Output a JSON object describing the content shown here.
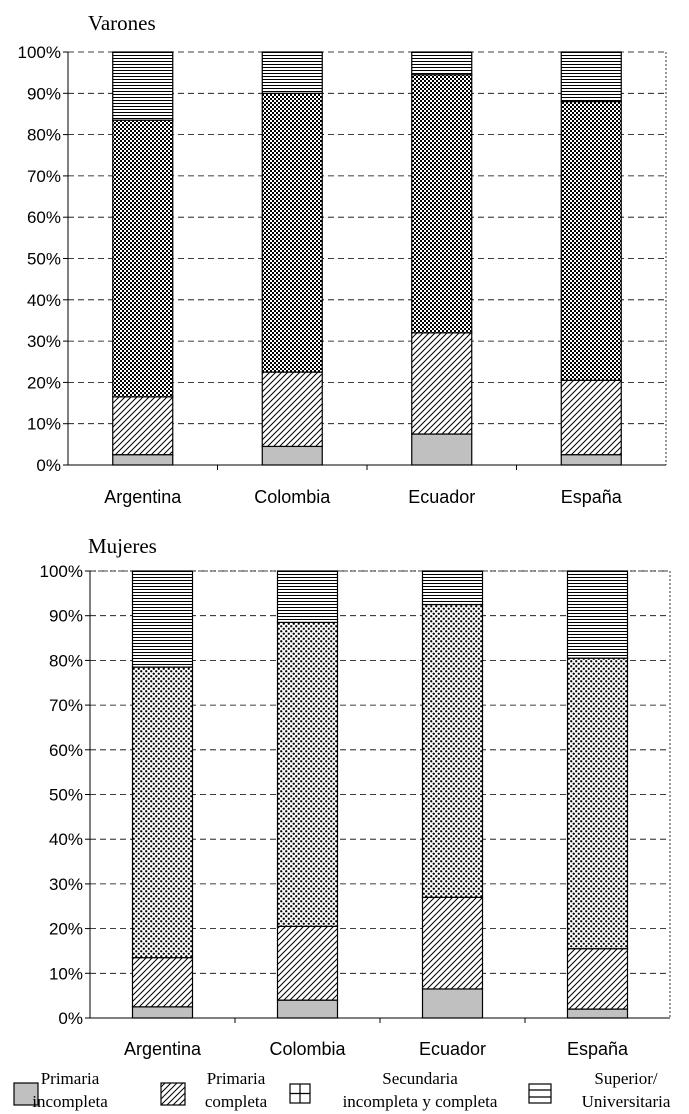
{
  "chart_data": [
    {
      "type": "bar",
      "stacked": true,
      "title": "Varones",
      "categories": [
        "Argentina",
        "Colombia",
        "Ecuador",
        "España"
      ],
      "yticks": [
        "0%",
        "10%",
        "20%",
        "30%",
        "40%",
        "50%",
        "60%",
        "70%",
        "80%",
        "90%",
        "100%"
      ],
      "ylim": [
        0,
        100
      ],
      "grid": "horizontal-dashed",
      "series": [
        {
          "name": "Primaria incompleta",
          "values": [
            2.5,
            4.5,
            7.5,
            2.5
          ]
        },
        {
          "name": "Primaria completa",
          "values": [
            14.0,
            18.0,
            24.5,
            18.0
          ]
        },
        {
          "name": "Secundaria incompleta y completa",
          "values": [
            67.0,
            67.5,
            62.5,
            67.5
          ]
        },
        {
          "name": "Superior/ Universitaria",
          "values": [
            16.5,
            10.0,
            5.5,
            12.0
          ]
        }
      ]
    },
    {
      "type": "bar",
      "stacked": true,
      "title": "Mujeres",
      "categories": [
        "Argentina",
        "Colombia",
        "Ecuador",
        "España"
      ],
      "yticks": [
        "0%",
        "10%",
        "20%",
        "30%",
        "40%",
        "50%",
        "60%",
        "70%",
        "80%",
        "90%",
        "100%"
      ],
      "ylim": [
        0,
        100
      ],
      "grid": "horizontal-dashed",
      "series": [
        {
          "name": "Primaria incompleta",
          "values": [
            2.5,
            4.0,
            6.5,
            2.0
          ]
        },
        {
          "name": "Primaria completa",
          "values": [
            11.0,
            16.5,
            20.5,
            13.5
          ]
        },
        {
          "name": "Secundaria incompleta y completa",
          "values": [
            65.0,
            68.0,
            65.5,
            65.0
          ]
        },
        {
          "name": "Superior/ Universitaria",
          "values": [
            21.5,
            11.5,
            7.5,
            19.5
          ]
        }
      ]
    }
  ],
  "legend": {
    "placement": "bottom",
    "items": [
      {
        "line1": "Primaria",
        "line2": "incompleta",
        "pattern": "solid-gray"
      },
      {
        "line1": "Primaria",
        "line2": "completa",
        "pattern": "diagonal"
      },
      {
        "line1": "Secundaria",
        "line2": "incompleta y completa",
        "pattern": "grid"
      },
      {
        "line1": "Superior/",
        "line2": "Universitaria",
        "pattern": "horizontal"
      }
    ]
  },
  "colors": {
    "fill_gray": "#c0c0c0",
    "ink": "#000000",
    "background": "#ffffff"
  }
}
